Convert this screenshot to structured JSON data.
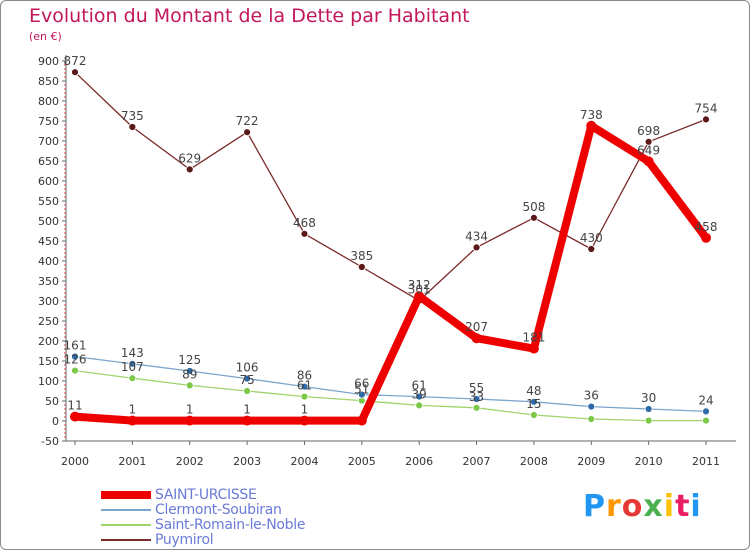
{
  "header": {
    "title": "Evolution du Montant de la Dette par Habitant",
    "unit": "(en €)"
  },
  "logo": {
    "text": "Proxiti",
    "letters": [
      "P",
      "r",
      "o",
      "x",
      "i",
      "t",
      "i"
    ],
    "colors": [
      "#2196f3",
      "#ff9800",
      "#e53935",
      "#4caf50",
      "#ffc107",
      "#e91e63",
      "#2196f3"
    ]
  },
  "chart_data": {
    "type": "line",
    "title": "Evolution du Montant de la Dette par Habitant",
    "subtitle": "(en €)",
    "x": [
      "2000",
      "2001",
      "2002",
      "2003",
      "2004",
      "2005",
      "2006",
      "2007",
      "2008",
      "2009",
      "2010",
      "2011"
    ],
    "ylim": [
      -50,
      900
    ],
    "yticks": [
      -50,
      0,
      50,
      100,
      150,
      200,
      250,
      300,
      350,
      400,
      450,
      500,
      550,
      600,
      650,
      700,
      750,
      800,
      850,
      900
    ],
    "grid": false,
    "legend_position": "bottom-left",
    "series": [
      {
        "name": "SAINT-URCISSE",
        "values": [
          11,
          1,
          1,
          1,
          1,
          1,
          312,
          207,
          181,
          738,
          649,
          458
        ],
        "labels": [
          "11",
          "1",
          "1",
          "1",
          "1",
          "",
          "312",
          "207",
          "181",
          "738",
          "649",
          "458"
        ],
        "color": "#ee0000",
        "width": 8,
        "marker": "#ee0000",
        "markerR": 5
      },
      {
        "name": "Clermont-Soubiran",
        "values": [
          161,
          143,
          125,
          106,
          86,
          66,
          61,
          55,
          48,
          36,
          30,
          24
        ],
        "labels": [
          "161",
          "143",
          "125",
          "106",
          "86",
          "66",
          "61",
          "55",
          "48",
          "36",
          "30",
          "24"
        ],
        "color": "#7aa6cc",
        "width": 1.3,
        "marker": "#2e6aa8",
        "markerR": 3.5
      },
      {
        "name": "Saint-Romain-le-Noble",
        "values": [
          126,
          107,
          89,
          75,
          61,
          51,
          39,
          33,
          15,
          5,
          1,
          1
        ],
        "labels": [
          "126",
          "107",
          "89",
          "75",
          "61",
          "51",
          "39",
          "33",
          "15",
          "",
          "",
          ""
        ],
        "color": "#9ed46a",
        "width": 1.3,
        "marker": "#7cc94a",
        "markerR": 3.5
      },
      {
        "name": "Puymirol",
        "values": [
          872,
          735,
          629,
          722,
          468,
          385,
          301,
          434,
          508,
          430,
          698,
          754
        ],
        "labels": [
          "872",
          "735",
          "629",
          "722",
          "468",
          "385",
          "301",
          "434",
          "508",
          "430",
          "698",
          "754"
        ],
        "color": "#7a2a2a",
        "width": 1.3,
        "marker": "#5a1818",
        "markerR": 3.5
      }
    ]
  }
}
